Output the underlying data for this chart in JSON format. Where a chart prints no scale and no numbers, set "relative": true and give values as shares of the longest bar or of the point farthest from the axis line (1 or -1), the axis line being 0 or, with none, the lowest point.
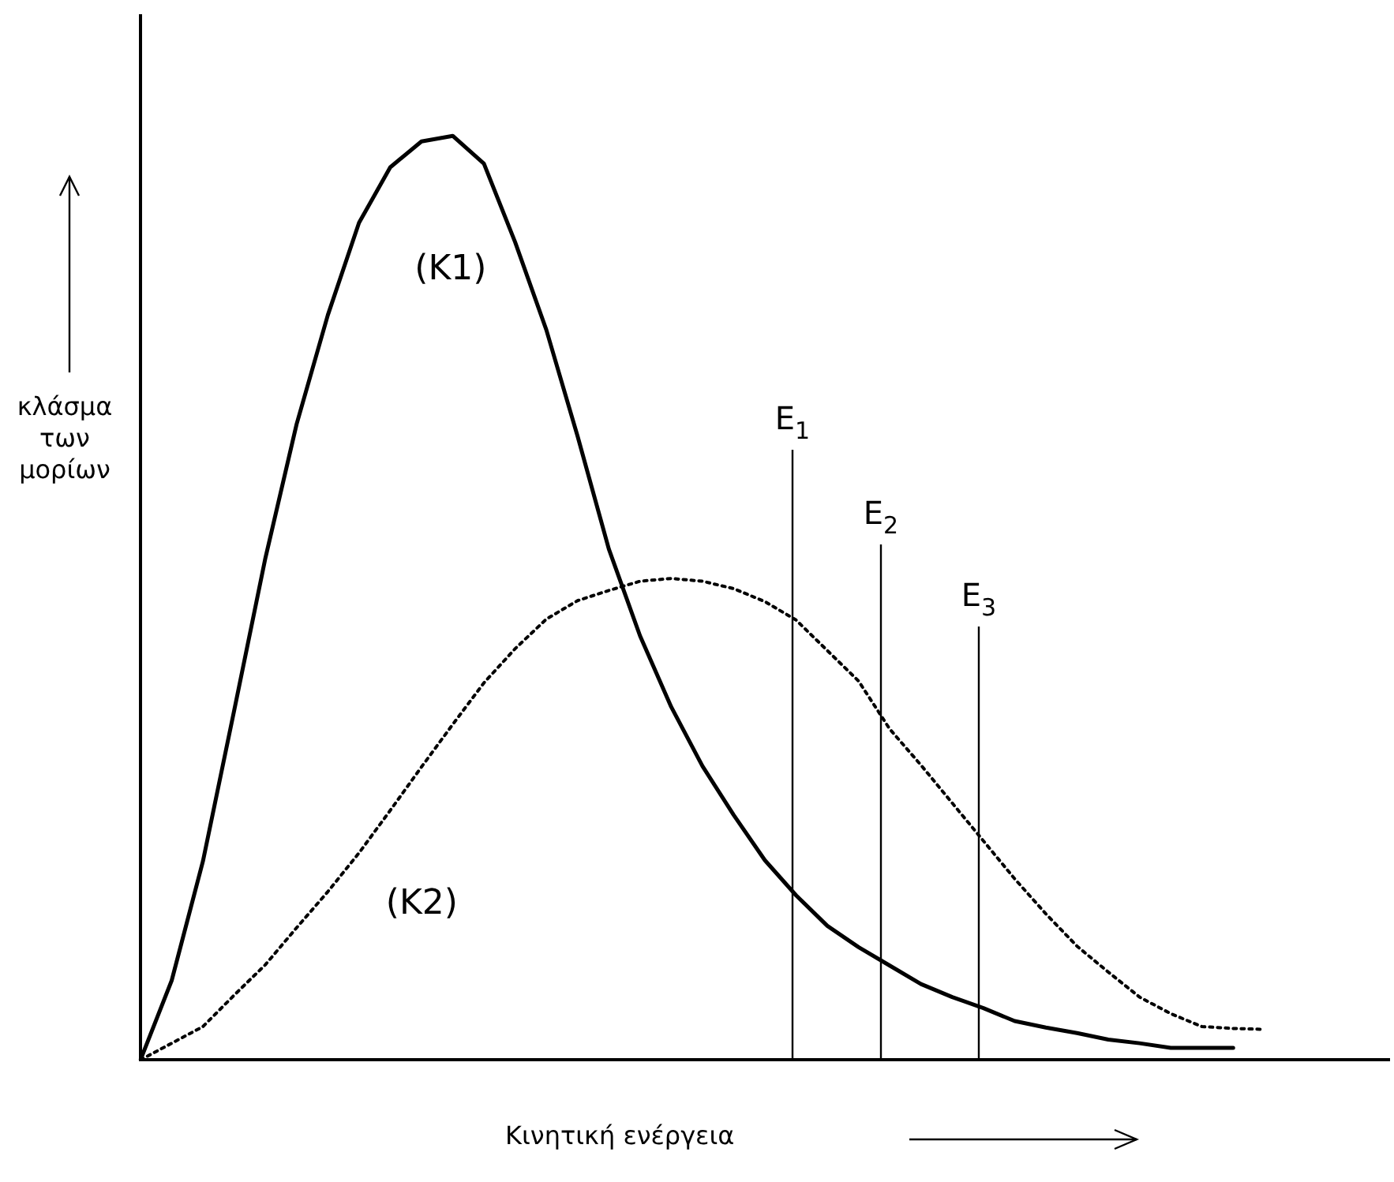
{
  "chart_data": {
    "type": "line",
    "relative": true,
    "grid": false,
    "legend": false,
    "marker": "none",
    "ylabel": "κλάσμα των μορίων",
    "xlabel": "Κινητική ενέργεια",
    "categories": [
      null,
      null,
      null,
      null,
      null,
      null,
      null,
      null,
      null,
      null,
      null,
      null,
      null,
      null,
      null,
      null,
      null,
      null,
      null,
      null,
      null,
      null,
      null,
      null,
      null,
      null,
      null,
      null,
      null,
      null,
      null,
      null,
      null,
      null,
      null,
      null,
      null,
      null,
      null,
      null,
      null
    ],
    "series": [
      {
        "name": "(K1)",
        "color": "#000000",
        "line_style": "solid",
        "values": [
          0,
          0.086,
          0.215,
          0.378,
          0.543,
          0.688,
          0.806,
          0.906,
          0.966,
          0.994,
          1,
          0.97,
          0.885,
          0.79,
          0.675,
          0.553,
          0.459,
          0.382,
          0.318,
          0.265,
          0.216,
          0.178,
          0.145,
          0.122,
          0.102,
          0.082,
          0.068,
          0.056,
          0.042,
          0.035,
          0.029,
          0.022,
          0.018,
          0.013,
          0.013,
          0.013,
          null,
          null,
          null,
          null,
          null
        ]
      },
      {
        "name": "(K2)",
        "color": "#000000",
        "line_style": "dotted",
        "values": [
          0,
          0.018,
          0.036,
          0.07,
          0.103,
          0.143,
          0.182,
          0.224,
          0.27,
          0.317,
          0.363,
          0.408,
          0.445,
          0.477,
          0.497,
          0.508,
          0.518,
          0.521,
          0.518,
          0.51,
          0.496,
          0.476,
          0.443,
          0.41,
          0.358,
          0.319,
          0.278,
          0.237,
          0.196,
          0.158,
          0.123,
          0.095,
          0.068,
          0.05,
          0.036,
          0.034,
          0.033,
          null,
          null,
          null,
          null
        ]
      }
    ],
    "annotations": [
      "E$_{1}$",
      "E$_{2}$",
      "E$_{3}$"
    ]
  }
}
